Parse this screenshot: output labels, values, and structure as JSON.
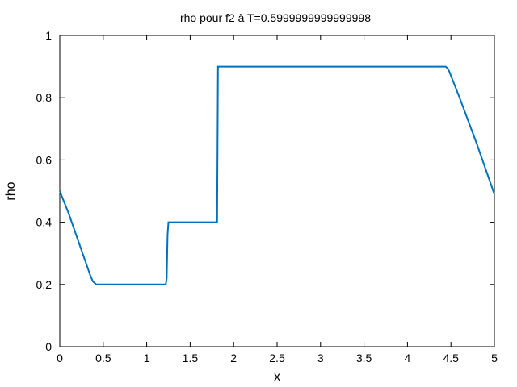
{
  "chart_data": {
    "type": "line",
    "title": "rho pour f2 à T=0.5999999999999998",
    "xlabel": "x",
    "ylabel": "rho",
    "xlim": [
      0,
      5
    ],
    "ylim": [
      0,
      1
    ],
    "grid": false,
    "x_ticks": [
      {
        "v": 0,
        "label": "0"
      },
      {
        "v": 0.5,
        "label": "0.5"
      },
      {
        "v": 1,
        "label": "1"
      },
      {
        "v": 1.5,
        "label": "1.5"
      },
      {
        "v": 2,
        "label": "2"
      },
      {
        "v": 2.5,
        "label": "2.5"
      },
      {
        "v": 3,
        "label": "3"
      },
      {
        "v": 3.5,
        "label": "3.5"
      },
      {
        "v": 4,
        "label": "4"
      },
      {
        "v": 4.5,
        "label": "4.5"
      },
      {
        "v": 5,
        "label": "5"
      }
    ],
    "y_ticks": [
      {
        "v": 0,
        "label": "0"
      },
      {
        "v": 0.2,
        "label": "0.2"
      },
      {
        "v": 0.4,
        "label": "0.4"
      },
      {
        "v": 0.6,
        "label": "0.6"
      },
      {
        "v": 0.8,
        "label": "0.8"
      },
      {
        "v": 1,
        "label": "1"
      }
    ],
    "line_color": "#0072bd",
    "series": [
      {
        "x": [
          0,
          0.1,
          0.2,
          0.3,
          0.35,
          0.38,
          0.42,
          0.5,
          1.0,
          1.22,
          1.23,
          1.24,
          1.25,
          1.5,
          1.81,
          1.815,
          1.82,
          1.83,
          2.5,
          3.5,
          4.44,
          4.46,
          4.48,
          4.6,
          4.8,
          5.0
        ],
        "y": [
          0.5,
          0.43,
          0.35,
          0.27,
          0.23,
          0.21,
          0.2,
          0.2,
          0.2,
          0.2,
          0.22,
          0.36,
          0.4,
          0.4,
          0.4,
          0.65,
          0.9,
          0.9,
          0.9,
          0.9,
          0.9,
          0.895,
          0.885,
          0.8,
          0.65,
          0.49
        ]
      }
    ]
  }
}
